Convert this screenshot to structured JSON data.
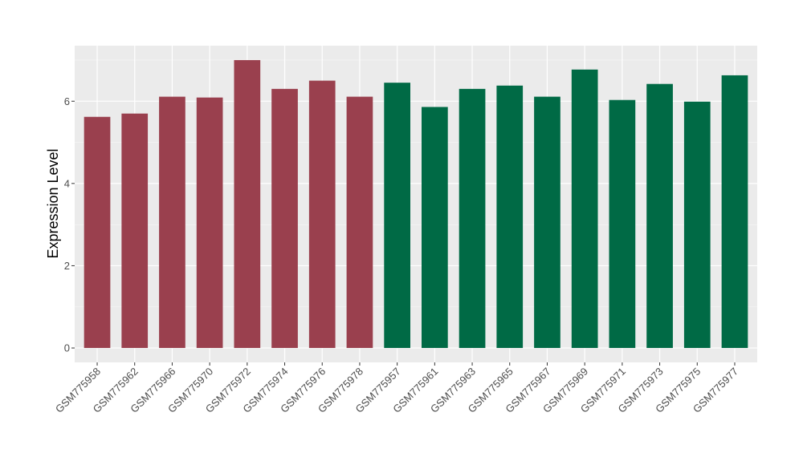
{
  "chart_data": {
    "type": "bar",
    "ylabel": "Expression Level",
    "xlabel": "",
    "ylim": [
      -0.35,
      7.35
    ],
    "yticks": [
      0,
      2,
      4,
      6
    ],
    "grid": true,
    "panel_color": "#ebebeb",
    "categories": [
      "GSM775958",
      "GSM775962",
      "GSM775966",
      "GSM775970",
      "GSM775972",
      "GSM775974",
      "GSM775976",
      "GSM775978",
      "GSM775957",
      "GSM775961",
      "GSM775963",
      "GSM775965",
      "GSM775967",
      "GSM775969",
      "GSM775971",
      "GSM775973",
      "GSM775975",
      "GSM775977"
    ],
    "values": [
      5.62,
      5.7,
      6.11,
      6.09,
      7.0,
      6.3,
      6.5,
      6.11,
      6.45,
      5.86,
      6.3,
      6.38,
      6.11,
      6.77,
      6.03,
      6.42,
      5.99,
      6.63
    ],
    "colors": [
      "#9a404e",
      "#9a404e",
      "#9a404e",
      "#9a404e",
      "#9a404e",
      "#9a404e",
      "#9a404e",
      "#9a404e",
      "#006a45",
      "#006a45",
      "#006a45",
      "#006a45",
      "#006a45",
      "#006a45",
      "#006a45",
      "#006a45",
      "#006a45",
      "#006a45"
    ]
  }
}
